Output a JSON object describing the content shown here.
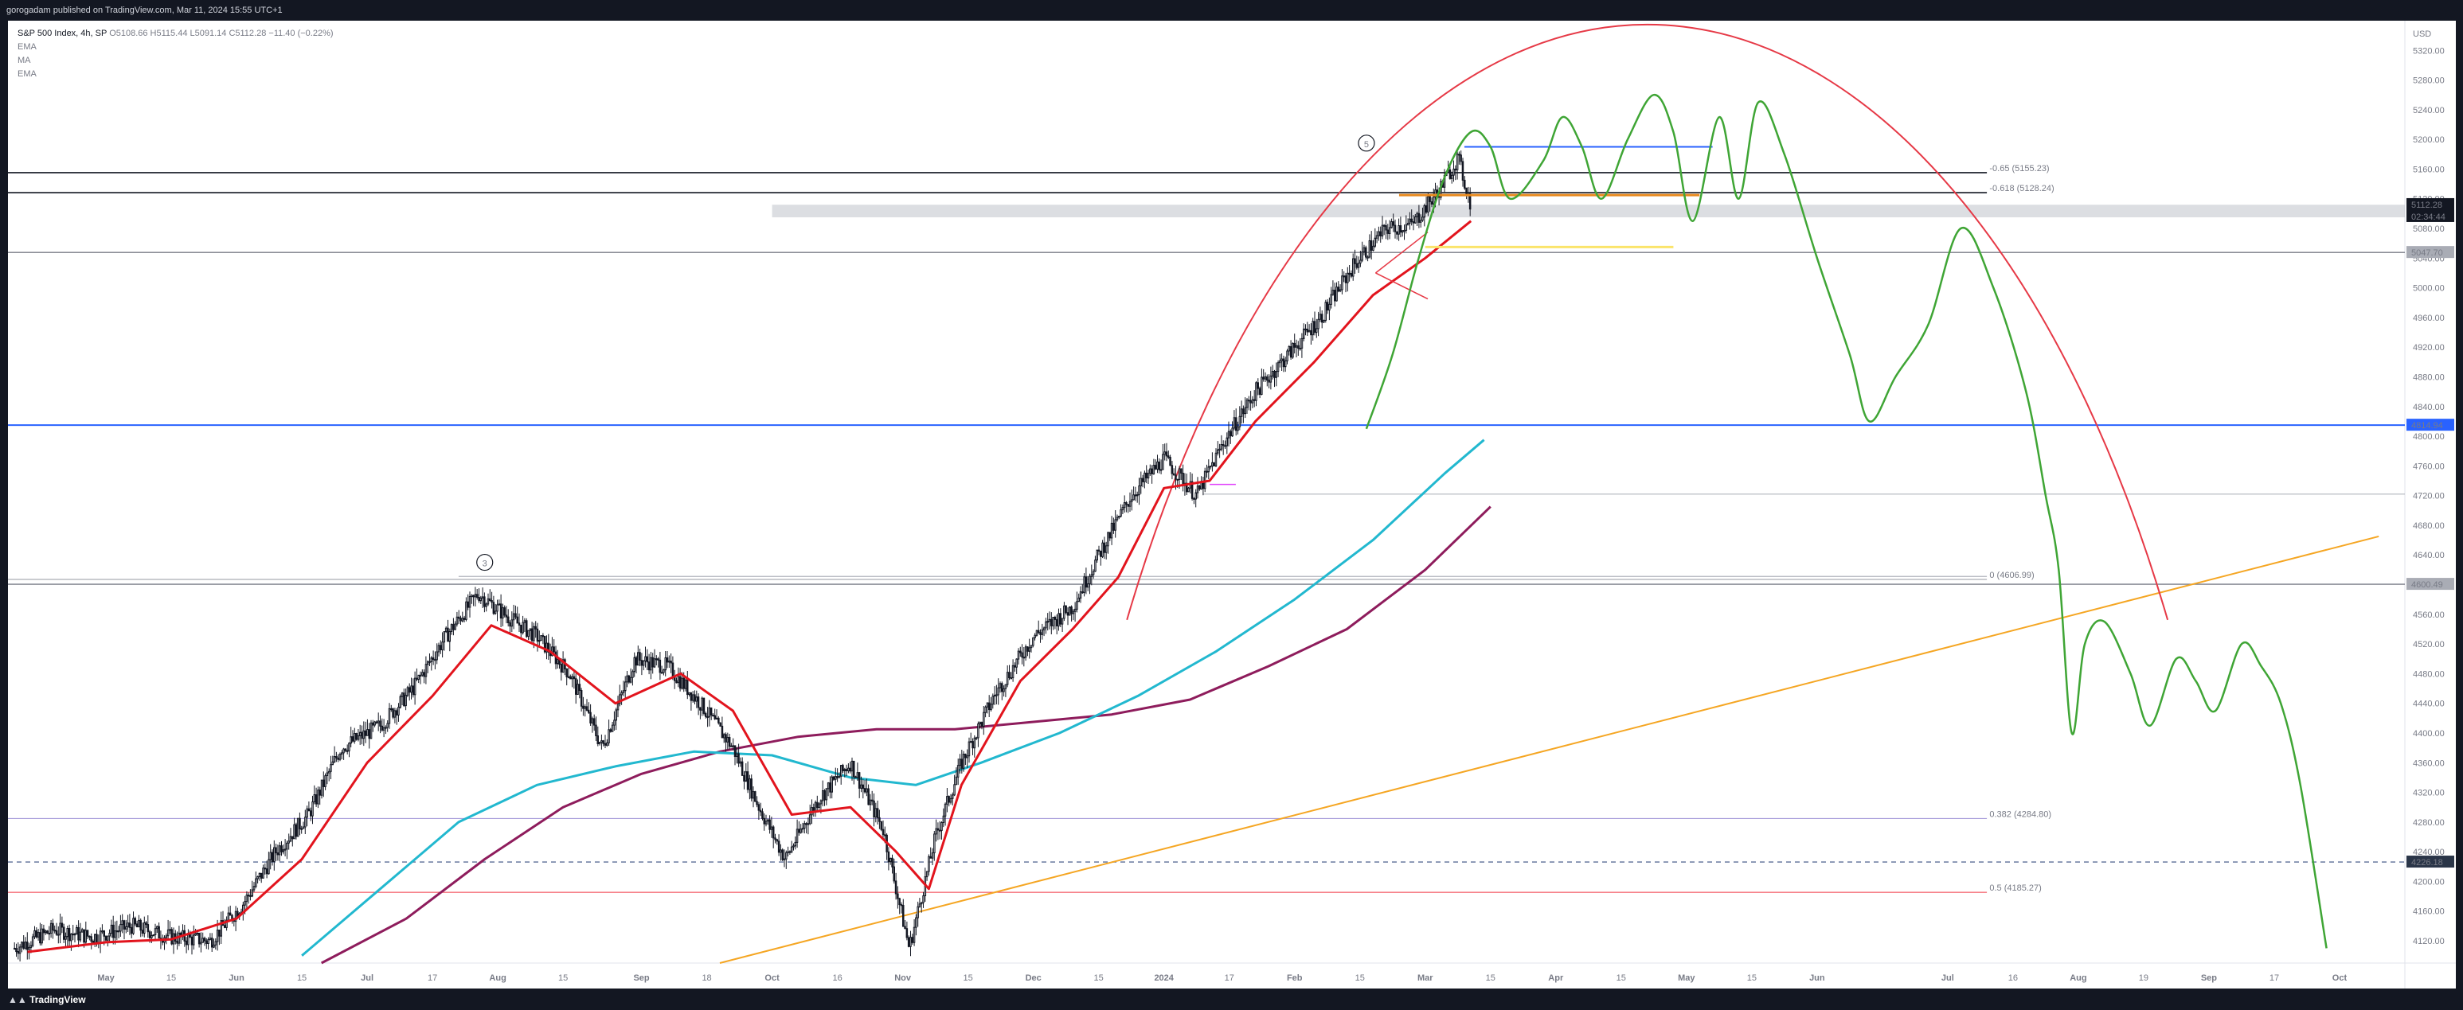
{
  "header": {
    "published": "gorogadam published on TradingView.com, Mar 11, 2024 15:55 UTC+1"
  },
  "legend": {
    "symbol": "S&P 500 Index, 4h, SP",
    "ohlc": "O5108.66 H5115.44 L5091.14 C5112.28 −11.40 (−0.22%)",
    "indicators": [
      "EMA",
      "MA",
      "EMA"
    ]
  },
  "footer": {
    "brand": "TradingView"
  },
  "colors": {
    "up": "#26a69a",
    "candle": "#131722",
    "ema_fast": "#e2141d",
    "ma": "#22b8cf",
    "ema_slow": "#8e1c5c",
    "projection": "#3fa535",
    "trend": "#f5a623",
    "arc": "#e63946",
    "blue_line": "#2962ff"
  },
  "chart_data": {
    "type": "line",
    "title": "S&P 500 Index, 4h, SP",
    "currency": "USD",
    "y_axis": {
      "range": [
        4090,
        5360
      ],
      "ticks": [
        4120,
        4160,
        4200,
        4240,
        4280,
        4320,
        4360,
        4400,
        4440,
        4480,
        4520,
        4560,
        4600,
        4640,
        4680,
        4720,
        4760,
        4800,
        4840,
        4880,
        4920,
        4960,
        5000,
        5040,
        5080,
        5120,
        5160,
        5200,
        5240,
        5280,
        5320
      ]
    },
    "x_axis": {
      "ticks": [
        {
          "t": 0.5,
          "label": "May"
        },
        {
          "t": 1.0,
          "label": "15"
        },
        {
          "t": 1.5,
          "label": "Jun"
        },
        {
          "t": 2.0,
          "label": "15"
        },
        {
          "t": 2.5,
          "label": "Jul"
        },
        {
          "t": 3.0,
          "label": "17"
        },
        {
          "t": 3.5,
          "label": "Aug"
        },
        {
          "t": 4.0,
          "label": "15"
        },
        {
          "t": 4.6,
          "label": "Sep"
        },
        {
          "t": 5.1,
          "label": "18"
        },
        {
          "t": 5.6,
          "label": "Oct"
        },
        {
          "t": 6.1,
          "label": "16"
        },
        {
          "t": 6.6,
          "label": "Nov"
        },
        {
          "t": 7.1,
          "label": "15"
        },
        {
          "t": 7.6,
          "label": "Dec"
        },
        {
          "t": 8.1,
          "label": "15"
        },
        {
          "t": 8.6,
          "label": "2024"
        },
        {
          "t": 9.1,
          "label": "17"
        },
        {
          "t": 9.6,
          "label": "Feb"
        },
        {
          "t": 10.1,
          "label": "15"
        },
        {
          "t": 10.6,
          "label": "Mar"
        },
        {
          "t": 11.1,
          "label": "15"
        },
        {
          "t": 11.6,
          "label": "Apr"
        },
        {
          "t": 12.1,
          "label": "15"
        },
        {
          "t": 12.6,
          "label": "May"
        },
        {
          "t": 13.1,
          "label": "15"
        },
        {
          "t": 13.6,
          "label": "Jun"
        },
        {
          "t": 14.6,
          "label": "Jul"
        },
        {
          "t": 15.1,
          "label": "16"
        },
        {
          "t": 15.6,
          "label": "Aug"
        },
        {
          "t": 16.1,
          "label": "19"
        },
        {
          "t": 16.6,
          "label": "Sep"
        },
        {
          "t": 17.1,
          "label": "17"
        },
        {
          "t": 17.6,
          "label": "Oct"
        }
      ],
      "range": [
        -0.25,
        18.1
      ]
    },
    "price_path": [
      [
        -0.2,
        4110
      ],
      [
        0.1,
        4135
      ],
      [
        0.4,
        4125
      ],
      [
        0.7,
        4140
      ],
      [
        1.0,
        4125
      ],
      [
        1.3,
        4120
      ],
      [
        1.55,
        4170
      ],
      [
        1.8,
        4240
      ],
      [
        2.05,
        4290
      ],
      [
        2.3,
        4380
      ],
      [
        2.6,
        4410
      ],
      [
        2.85,
        4460
      ],
      [
        3.1,
        4530
      ],
      [
        3.35,
        4588
      ],
      [
        3.55,
        4560
      ],
      [
        3.8,
        4530
      ],
      [
        4.05,
        4480
      ],
      [
        4.3,
        4380
      ],
      [
        4.55,
        4500
      ],
      [
        4.8,
        4490
      ],
      [
        5.05,
        4440
      ],
      [
        5.3,
        4380
      ],
      [
        5.5,
        4300
      ],
      [
        5.7,
        4230
      ],
      [
        5.95,
        4310
      ],
      [
        6.2,
        4360
      ],
      [
        6.45,
        4270
      ],
      [
        6.65,
        4110
      ],
      [
        6.85,
        4260
      ],
      [
        7.05,
        4360
      ],
      [
        7.3,
        4450
      ],
      [
        7.6,
        4530
      ],
      [
        7.9,
        4570
      ],
      [
        8.1,
        4640
      ],
      [
        8.35,
        4720
      ],
      [
        8.6,
        4770
      ],
      [
        8.85,
        4720
      ],
      [
        9.05,
        4790
      ],
      [
        9.3,
        4860
      ],
      [
        9.55,
        4910
      ],
      [
        9.8,
        4960
      ],
      [
        10.05,
        5030
      ],
      [
        10.3,
        5080
      ],
      [
        10.5,
        5085
      ],
      [
        10.7,
        5130
      ],
      [
        10.85,
        5175
      ],
      [
        10.95,
        5112
      ]
    ],
    "series": [
      {
        "name": "EMA",
        "points": [
          [
            -0.1,
            4105
          ],
          [
            0.5,
            4118
          ],
          [
            1.0,
            4122
          ],
          [
            1.5,
            4150
          ],
          [
            2.0,
            4230
          ],
          [
            2.5,
            4360
          ],
          [
            3.0,
            4450
          ],
          [
            3.45,
            4545
          ],
          [
            3.9,
            4510
          ],
          [
            4.4,
            4440
          ],
          [
            4.9,
            4480
          ],
          [
            5.3,
            4430
          ],
          [
            5.75,
            4290
          ],
          [
            6.2,
            4300
          ],
          [
            6.55,
            4240
          ],
          [
            6.8,
            4190
          ],
          [
            7.05,
            4330
          ],
          [
            7.5,
            4470
          ],
          [
            7.9,
            4540
          ],
          [
            8.25,
            4610
          ],
          [
            8.6,
            4730
          ],
          [
            8.95,
            4740
          ],
          [
            9.3,
            4820
          ],
          [
            9.75,
            4900
          ],
          [
            10.2,
            4990
          ],
          [
            10.6,
            5040
          ],
          [
            10.95,
            5090
          ]
        ]
      },
      {
        "name": "MA",
        "points": [
          [
            2.0,
            4100
          ],
          [
            2.6,
            4190
          ],
          [
            3.2,
            4280
          ],
          [
            3.8,
            4330
          ],
          [
            4.4,
            4355
          ],
          [
            5.0,
            4375
          ],
          [
            5.6,
            4370
          ],
          [
            6.2,
            4340
          ],
          [
            6.7,
            4330
          ],
          [
            7.2,
            4360
          ],
          [
            7.8,
            4400
          ],
          [
            8.4,
            4450
          ],
          [
            9.0,
            4510
          ],
          [
            9.6,
            4580
          ],
          [
            10.2,
            4660
          ],
          [
            10.75,
            4750
          ],
          [
            11.05,
            4795
          ]
        ]
      },
      {
        "name": "EMA",
        "points": [
          [
            2.15,
            4090
          ],
          [
            2.8,
            4150
          ],
          [
            3.4,
            4230
          ],
          [
            4.0,
            4300
          ],
          [
            4.6,
            4345
          ],
          [
            5.2,
            4375
          ],
          [
            5.8,
            4395
          ],
          [
            6.4,
            4405
          ],
          [
            7.0,
            4405
          ],
          [
            7.6,
            4415
          ],
          [
            8.2,
            4425
          ],
          [
            8.8,
            4445
          ],
          [
            9.4,
            4490
          ],
          [
            10.0,
            4540
          ],
          [
            10.6,
            4620
          ],
          [
            11.1,
            4705
          ]
        ]
      }
    ],
    "projection": [
      [
        10.15,
        4810
      ],
      [
        10.35,
        4910
      ],
      [
        10.55,
        5040
      ],
      [
        10.75,
        5150
      ],
      [
        10.95,
        5210
      ],
      [
        11.1,
        5190
      ],
      [
        11.25,
        5120
      ],
      [
        11.5,
        5170
      ],
      [
        11.65,
        5230
      ],
      [
        11.8,
        5190
      ],
      [
        11.95,
        5120
      ],
      [
        12.15,
        5200
      ],
      [
        12.35,
        5260
      ],
      [
        12.5,
        5210
      ],
      [
        12.65,
        5090
      ],
      [
        12.85,
        5230
      ],
      [
        13.0,
        5120
      ],
      [
        13.15,
        5250
      ],
      [
        13.35,
        5180
      ],
      [
        13.6,
        5040
      ],
      [
        13.85,
        4910
      ],
      [
        14.0,
        4820
      ],
      [
        14.2,
        4880
      ],
      [
        14.45,
        4950
      ],
      [
        14.7,
        5080
      ],
      [
        14.95,
        5000
      ],
      [
        15.2,
        4860
      ],
      [
        15.35,
        4720
      ],
      [
        15.45,
        4620
      ],
      [
        15.55,
        4400
      ],
      [
        15.65,
        4520
      ],
      [
        15.8,
        4550
      ],
      [
        16.0,
        4480
      ],
      [
        16.15,
        4410
      ],
      [
        16.35,
        4500
      ],
      [
        16.5,
        4470
      ],
      [
        16.65,
        4430
      ],
      [
        16.85,
        4520
      ],
      [
        17.0,
        4490
      ],
      [
        17.15,
        4440
      ],
      [
        17.3,
        4330
      ],
      [
        17.5,
        4110
      ]
    ],
    "fib_levels": [
      {
        "price": 5155.23,
        "label": "-0.65 (5155.23)"
      },
      {
        "price": 5128.24,
        "label": "-0.618 (5128.24)"
      },
      {
        "price": 4606.99,
        "label": "0 (4606.99)"
      },
      {
        "price": 4284.8,
        "label": "0.382 (4284.80)"
      },
      {
        "price": 4185.27,
        "label": "0.5 (4185.27)"
      }
    ],
    "horizontal_lines": [
      {
        "price": 4814.94,
        "label": "4814.94"
      },
      {
        "price": 4600.49,
        "label": "4600.49"
      },
      {
        "price": 5047.7,
        "label": "5047.70"
      },
      {
        "price": 4226.18,
        "label": "4226.18"
      }
    ],
    "last_price": {
      "value": 5112.28,
      "label": "5112.28",
      "countdown": "02:34:44"
    },
    "wave_labels": [
      {
        "t": 3.4,
        "price": 4630,
        "label": "3"
      },
      {
        "t": 10.15,
        "price": 5195,
        "label": "5"
      }
    ],
    "trend_line": [
      [
        5.2,
        4090
      ],
      [
        17.9,
        4665
      ]
    ],
    "arc": {
      "center_t": 12.3,
      "center_price": 3750,
      "rx_t": 4.6,
      "ry_price": 1605,
      "start_deg": 150,
      "end_deg": 30
    },
    "zone": {
      "t0": 5.6,
      "t1": 18.1,
      "p0": 5095,
      "p1": 5112
    },
    "grey_lines": [
      {
        "price": 4722,
        "t0": 8.9,
        "t1": 18.1
      },
      {
        "price": 4611,
        "t0": 3.2,
        "t1": 14.9
      }
    ],
    "blue_segment": {
      "price": 5190,
      "t0": 10.9,
      "t1": 12.8
    },
    "orange_segment": {
      "price": 5125,
      "t0": 10.4,
      "t1": 12.7
    },
    "yellow_segment": {
      "price": 5055,
      "t0": 10.6,
      "t1": 12.5
    }
  }
}
